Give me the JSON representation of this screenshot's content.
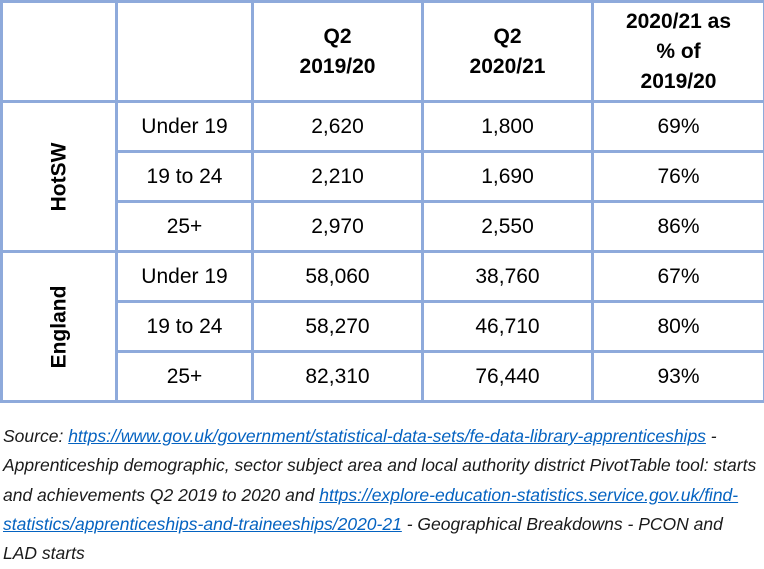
{
  "table": {
    "headers": [
      "",
      "",
      "Q2\n2019/20",
      "Q2\n2020/21",
      "2020/21 as\n% of\n2019/20"
    ],
    "groups": [
      {
        "region": "HotSW",
        "rows": [
          {
            "age": "Under 19",
            "q2_1920": "2,620",
            "q2_2021": "1,800",
            "pct": "69%"
          },
          {
            "age": "19 to 24",
            "q2_1920": "2,210",
            "q2_2021": "1,690",
            "pct": "76%"
          },
          {
            "age": "25+",
            "q2_1920": "2,970",
            "q2_2021": "2,550",
            "pct": "86%"
          }
        ]
      },
      {
        "region": "England",
        "rows": [
          {
            "age": "Under 19",
            "q2_1920": "58,060",
            "q2_2021": "38,760",
            "pct": "67%"
          },
          {
            "age": "19 to 24",
            "q2_1920": "58,270",
            "q2_2021": "46,710",
            "pct": "80%"
          },
          {
            "age": "25+",
            "q2_1920": "82,310",
            "q2_2021": "76,440",
            "pct": "93%"
          }
        ]
      }
    ]
  },
  "source": {
    "prefix": "Source: ",
    "link1": "https://www.gov.uk/government/statistical-data-sets/fe-data-library-apprenticeships",
    "text1": " - Apprenticeship demographic, sector subject area and local authority district PivotTable tool: starts and achievements Q2 2019 to 2020 and ",
    "link2": "https://explore-education-statistics.service.gov.uk/find-statistics/apprenticeships-and-traineeships/2020-21",
    "text2": " - Geographical Breakdowns - PCON and LAD starts"
  },
  "colors": {
    "border": "#8eaadb",
    "link": "#0563c1"
  }
}
